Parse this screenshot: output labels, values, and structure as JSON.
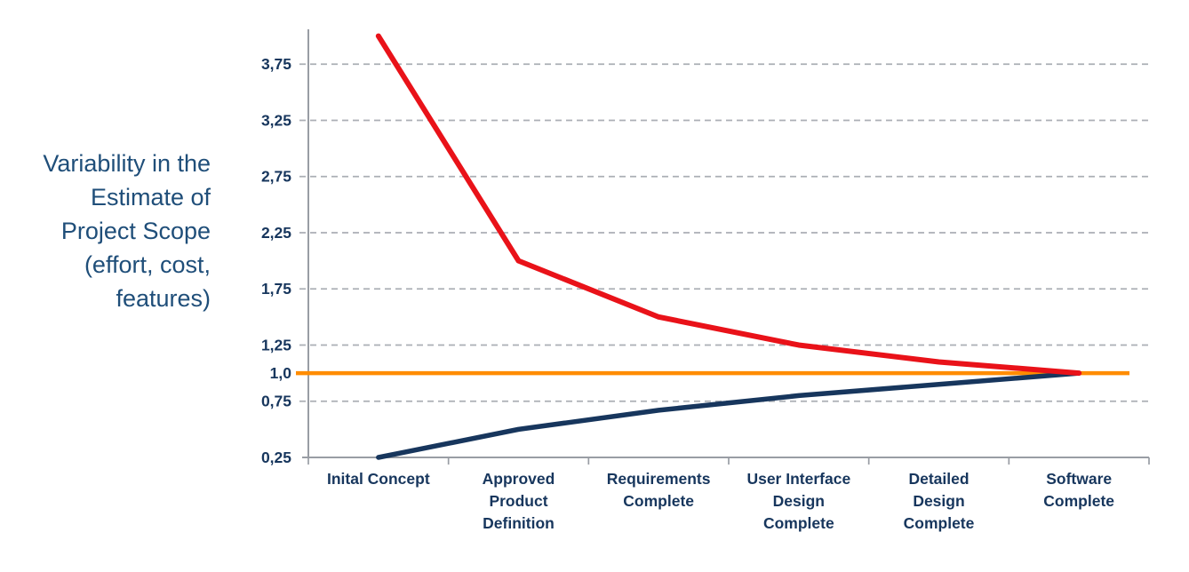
{
  "page": {
    "background": "#FFFFFF"
  },
  "chart_data": {
    "type": "line",
    "title": "",
    "ylabel": "Variability in the Estimate of Project Scope (effort, cost, features)",
    "ylabel_lines": [
      "Variability in the",
      "Estimate of",
      "Project Scope",
      "(effort, cost,",
      "features)"
    ],
    "xlabel": "",
    "categories": [
      "Inital Concept",
      "Approved Product Definition",
      "Requirements Complete",
      "User Interface Design Complete",
      "Detailed Design Complete",
      "Software Complete"
    ],
    "category_label_lines": [
      [
        "Inital Concept"
      ],
      [
        "Approved",
        "Product",
        "Definition"
      ],
      [
        "Requirements",
        "Complete"
      ],
      [
        "User Interface",
        "Design",
        "Complete"
      ],
      [
        "Detailed",
        "Design",
        "Complete"
      ],
      [
        "Software",
        "Complete"
      ]
    ],
    "series": [
      {
        "name": "baseline-final-value",
        "color": "#FF8C00",
        "values": [
          1.0,
          1.0,
          1.0,
          1.0,
          1.0,
          1.0
        ],
        "full_width": true
      },
      {
        "name": "lower-estimate-bound",
        "color": "#17365D",
        "values": [
          0.25,
          0.5,
          0.67,
          0.8,
          0.9,
          1.0
        ],
        "full_width": false
      },
      {
        "name": "upper-estimate-bound",
        "color": "#E91219",
        "values": [
          4.0,
          2.0,
          1.5,
          1.25,
          1.1,
          1.0
        ],
        "full_width": false
      }
    ],
    "yticks": [
      {
        "value": 3.75,
        "label": "3,75"
      },
      {
        "value": 3.25,
        "label": "3,25"
      },
      {
        "value": 2.75,
        "label": "2,75"
      },
      {
        "value": 2.25,
        "label": "2,25"
      },
      {
        "value": 1.75,
        "label": "1,75"
      },
      {
        "value": 1.25,
        "label": "1,25"
      },
      {
        "value": 1.0,
        "label": "1,0"
      },
      {
        "value": 0.75,
        "label": "0,75"
      },
      {
        "value": 0.25,
        "label": "0,25"
      }
    ],
    "gridline_values": [
      3.75,
      3.25,
      2.75,
      2.25,
      1.75,
      1.25,
      0.75
    ],
    "ylim": [
      0.25,
      4.06
    ],
    "grid": "horizontal-dashed",
    "legend": "none",
    "colors": {
      "axis": "#999DA4",
      "gridline": "#ABAFB5",
      "tick_label": "#17365D",
      "category_label": "#17365D",
      "y_title": "#1F4E79",
      "upper_line": "#E91219",
      "lower_line": "#17365D",
      "baseline": "#FF8C00"
    }
  }
}
